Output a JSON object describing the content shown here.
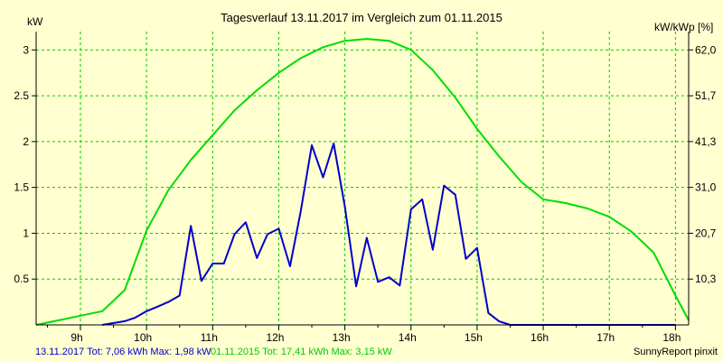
{
  "chart_data": {
    "type": "line",
    "title": "Tagesverlauf 13.11.2017 im Vergleich zum 01.11.2015",
    "ylabel_left": "kW",
    "ylabel_right": "kW/kWp [%]",
    "x_tick_labels": [
      "9h",
      "10h",
      "11h",
      "12h",
      "13h",
      "14h",
      "15h",
      "16h",
      "17h",
      "18h"
    ],
    "xlim": [
      8.33,
      18.2
    ],
    "ylim": [
      0,
      3.2
    ],
    "y_ticks_left": [
      0.5,
      1,
      1.5,
      2,
      2.5,
      3
    ],
    "y_tick_labels_left": [
      "0.5",
      "1",
      "1.5",
      "2",
      "2.5",
      "3"
    ],
    "y_ticks_right": [
      0.5,
      1,
      1.5,
      2,
      2.5,
      3
    ],
    "y_tick_labels_right": [
      "10,3",
      "20,7",
      "31,0",
      "41,3",
      "51,7",
      "62,0"
    ],
    "grid": true,
    "colors": {
      "background": "#ffffd0",
      "grid": "#00cc00",
      "series_2017": "#0000cc",
      "series_2015": "#00dd00",
      "axis": "#000000"
    },
    "series": [
      {
        "name": "13.11.2017",
        "color": "#0000cc",
        "x": [
          9.33,
          9.67,
          9.83,
          10.0,
          10.17,
          10.33,
          10.5,
          10.67,
          10.83,
          11.0,
          11.17,
          11.33,
          11.5,
          11.67,
          11.83,
          12.0,
          12.17,
          12.33,
          12.5,
          12.67,
          12.83,
          13.0,
          13.17,
          13.33,
          13.5,
          13.67,
          13.83,
          14.0,
          14.17,
          14.33,
          14.5,
          14.67,
          14.83,
          15.0,
          15.17,
          15.33,
          15.5,
          15.67,
          15.83,
          16.0,
          16.17,
          16.33,
          16.5,
          16.67,
          16.83,
          17.0,
          17.17,
          17.33,
          17.5,
          17.67,
          17.83,
          18.0
        ],
        "values": [
          0.0,
          0.04,
          0.08,
          0.15,
          0.2,
          0.25,
          0.32,
          1.08,
          0.48,
          0.67,
          0.67,
          0.99,
          1.12,
          0.73,
          0.99,
          1.05,
          0.64,
          1.23,
          1.96,
          1.61,
          1.98,
          1.29,
          0.42,
          0.95,
          0.47,
          0.52,
          0.43,
          1.26,
          1.37,
          0.82,
          1.52,
          1.42,
          0.72,
          0.84,
          0.13,
          0.04,
          0.0,
          0.0,
          0.0,
          0.0,
          0.0,
          0.0,
          0.0,
          0.0,
          0.0,
          0.0,
          0.0,
          0.0,
          0.0,
          0.0,
          0.0,
          0.0
        ]
      },
      {
        "name": "01.11.2015",
        "color": "#00dd00",
        "x": [
          8.33,
          8.67,
          9.0,
          9.33,
          9.67,
          10.0,
          10.33,
          10.67,
          11.0,
          11.33,
          11.67,
          12.0,
          12.33,
          12.67,
          13.0,
          13.33,
          13.67,
          14.0,
          14.33,
          14.67,
          15.0,
          15.33,
          15.67,
          16.0,
          16.33,
          16.67,
          17.0,
          17.33,
          17.67,
          18.0,
          18.2
        ],
        "values": [
          0.0,
          0.05,
          0.1,
          0.15,
          0.38,
          1.03,
          1.47,
          1.8,
          2.07,
          2.34,
          2.56,
          2.75,
          2.91,
          3.03,
          3.1,
          3.12,
          3.1,
          3.0,
          2.78,
          2.48,
          2.14,
          1.84,
          1.56,
          1.37,
          1.33,
          1.27,
          1.18,
          1.02,
          0.79,
          0.32,
          0.05
        ]
      }
    ]
  },
  "footer": {
    "legend_2017": "13.11.2017 Tot: 7,06 kWh Max: 1,98 kW",
    "legend_2015": "01.11.2015 Tot: 17,41 kWh Max: 3,15 kW",
    "credit": "SunnyReport pinxit"
  }
}
